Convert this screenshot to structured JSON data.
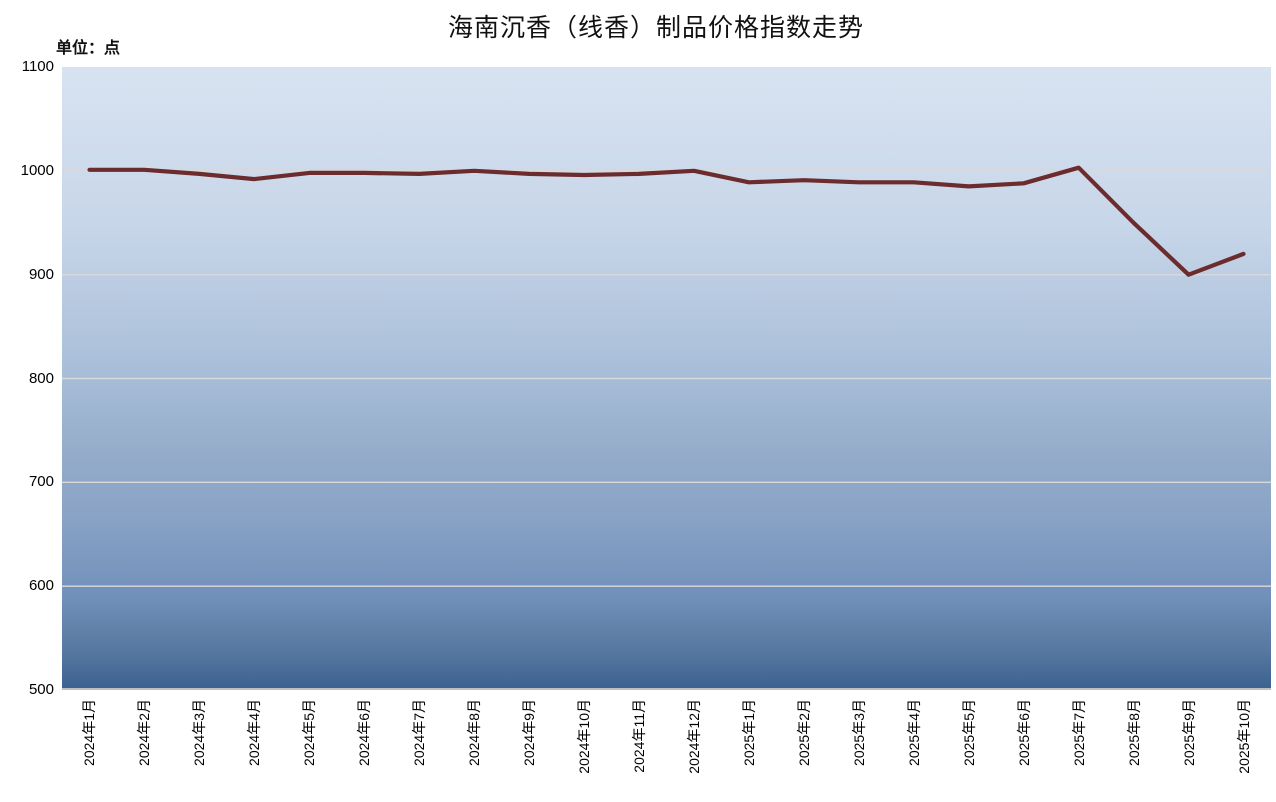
{
  "page": {
    "title": "海南沉香（线香）制品价格指数走势",
    "unit_label": "单位：点"
  },
  "colors": {
    "line": "#6c2b2d",
    "plot_bg_top": "#d8e3f1",
    "plot_bg_mid": "#a9bfd9",
    "plot_bg_low": "#7190ba",
    "plot_bg_bottom": "#3a618f",
    "gridline": "#d9d9d9",
    "axis_line": "#bfbfbf",
    "text": "#000000",
    "page_bg": "#ffffff"
  },
  "chart_data": {
    "type": "line",
    "title": "海南沉香（线香）制品价格指数走势",
    "xlabel": "",
    "ylabel": "单位：点",
    "ylim": [
      500,
      1100
    ],
    "yticks": [
      1100,
      1000,
      900,
      800,
      700,
      600,
      500
    ],
    "grid": true,
    "legend_position": "none",
    "categories": [
      "2024年1月",
      "2024年2月",
      "2024年3月",
      "2024年4月",
      "2024年5月",
      "2024年6月",
      "2024年7月",
      "2024年8月",
      "2024年9月",
      "2024年10月",
      "2024年11月",
      "2024年12月",
      "2025年1月",
      "2025年2月",
      "2025年3月",
      "2025年4月",
      "2025年5月",
      "2025年6月",
      "2025年7月",
      "2025年8月",
      "2025年9月",
      "2025年10月"
    ],
    "series": [
      {
        "name": "海南沉香（线香）制品价格指数",
        "values": [
          1001,
          1001,
          997,
          992,
          998,
          998,
          997,
          1000,
          997,
          996,
          997,
          1000,
          989,
          991,
          989,
          989,
          985,
          988,
          1003,
          950,
          900,
          920
        ]
      }
    ]
  }
}
